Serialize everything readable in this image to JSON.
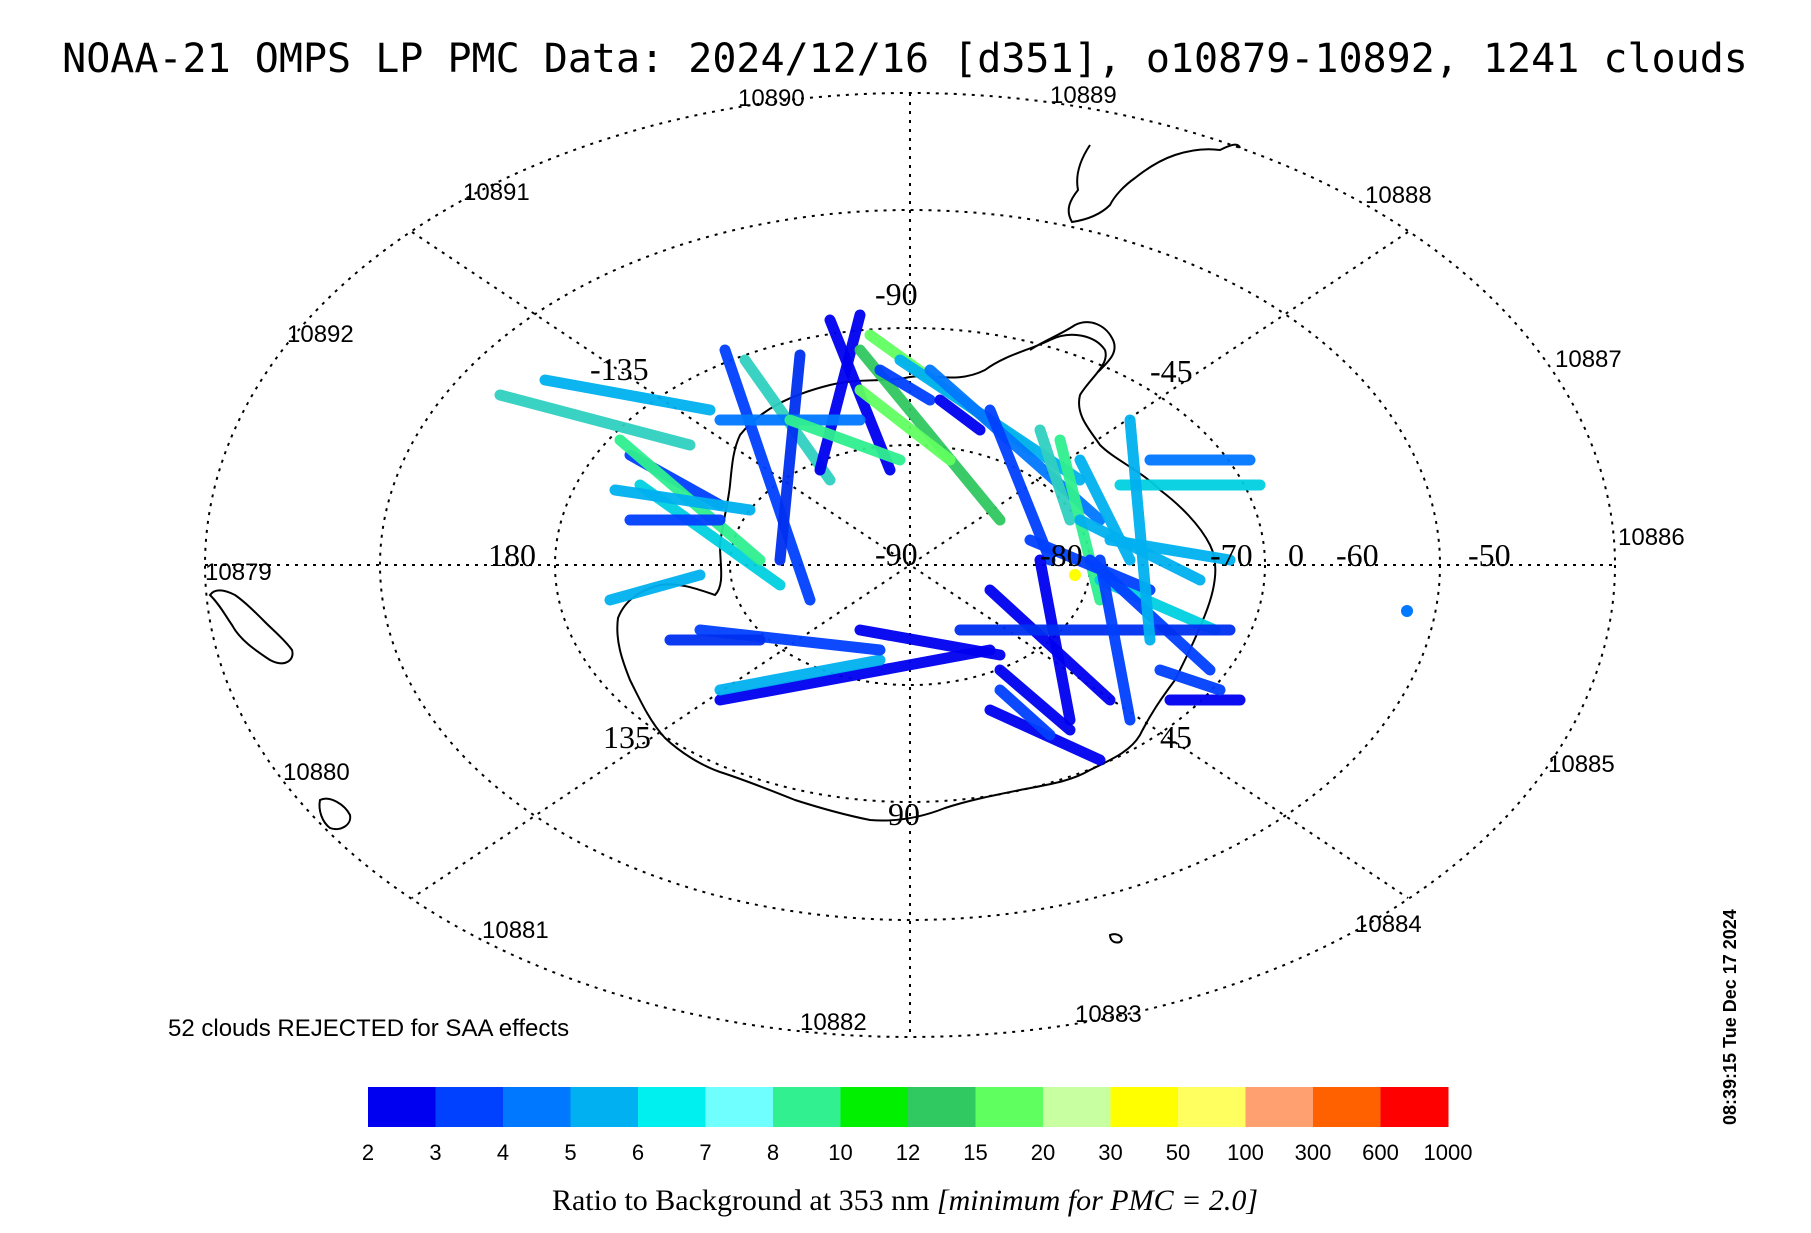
{
  "title": "NOAA-21 OMPS LP PMC Data: 2024/12/16 [d351], o10879-10892, 1241 clouds",
  "timestamp": "08:39:15 Tue Dec 17 2024",
  "rejected_note": "52 clouds REJECTED for SAA effects",
  "colorbar": {
    "caption_main": "Ratio to Background at 353 nm ",
    "caption_note": "[minimum for PMC = 2.0]",
    "ticks": [
      "2",
      "3",
      "4",
      "5",
      "6",
      "7",
      "8",
      "10",
      "12",
      "15",
      "20",
      "30",
      "50",
      "100",
      "300",
      "600",
      "1000"
    ],
    "colors": [
      "#0000f0",
      "#0040ff",
      "#0078ff",
      "#00b0f0",
      "#00f0f0",
      "#70ffff",
      "#30f090",
      "#00f000",
      "#30c860",
      "#60ff60",
      "#c8ffa0",
      "#ffff00",
      "#ffff60",
      "#ffa070",
      "#ff6000",
      "#ff0000"
    ]
  },
  "orbits": [
    {
      "label": "10879"
    },
    {
      "label": "10880"
    },
    {
      "label": "10881"
    },
    {
      "label": "10882"
    },
    {
      "label": "10883"
    },
    {
      "label": "10884"
    },
    {
      "label": "10885"
    },
    {
      "label": "10886"
    },
    {
      "label": "10887"
    },
    {
      "label": "10888"
    },
    {
      "label": "10889"
    },
    {
      "label": "10890"
    },
    {
      "label": "10891"
    },
    {
      "label": "10892"
    }
  ],
  "grid_labels": {
    "lat_top": "-90",
    "lat_center": "-90",
    "lat_bottom": "90",
    "lon_180": "180",
    "lon_-135": "-135",
    "lon_-45": "-45",
    "lon_135": "135",
    "lon_45": "45",
    "lat_-70": "-70",
    "lat_0": "0",
    "lat_-60": "-60",
    "lat_-50": "-50",
    "lat_-80": "-80"
  },
  "map": {
    "projection": "south polar stereographic",
    "region": "Antarctica",
    "grid_line_color": "#000000"
  }
}
